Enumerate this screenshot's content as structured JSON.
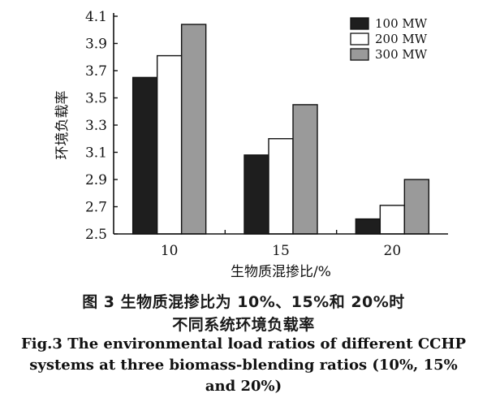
{
  "chart_data": {
    "type": "bar",
    "ylabel": "环境负载率",
    "xlabel": "生物质混掺比/%",
    "categories": [
      "10",
      "15",
      "20"
    ],
    "series": [
      {
        "name": "100 MW",
        "values": [
          3.65,
          3.08,
          2.61
        ],
        "color": "#1e1e1e"
      },
      {
        "name": "200 MW",
        "values": [
          3.81,
          3.2,
          2.71
        ],
        "color": "#ffffff"
      },
      {
        "name": "300 MW",
        "values": [
          4.04,
          3.45,
          2.9
        ],
        "color": "#9a9a9a"
      }
    ],
    "ylim": [
      2.5,
      4.1
    ],
    "yticks": [
      "2.5",
      "2.7",
      "2.9",
      "3.1",
      "3.3",
      "3.5",
      "3.7",
      "3.9",
      "4.1"
    ],
    "legend_position": "top-right",
    "grid": false
  },
  "caption": {
    "cn_line1": "图 3  生物质混掺比为 10%、15%和 20%时",
    "cn_line2": "不同系统环境负载率",
    "en_line1": "Fig.3 The environmental load ratios of different CCHP",
    "en_line2": "systems at three biomass-blending ratios (10%, 15%",
    "en_line3": "and 20%)"
  }
}
